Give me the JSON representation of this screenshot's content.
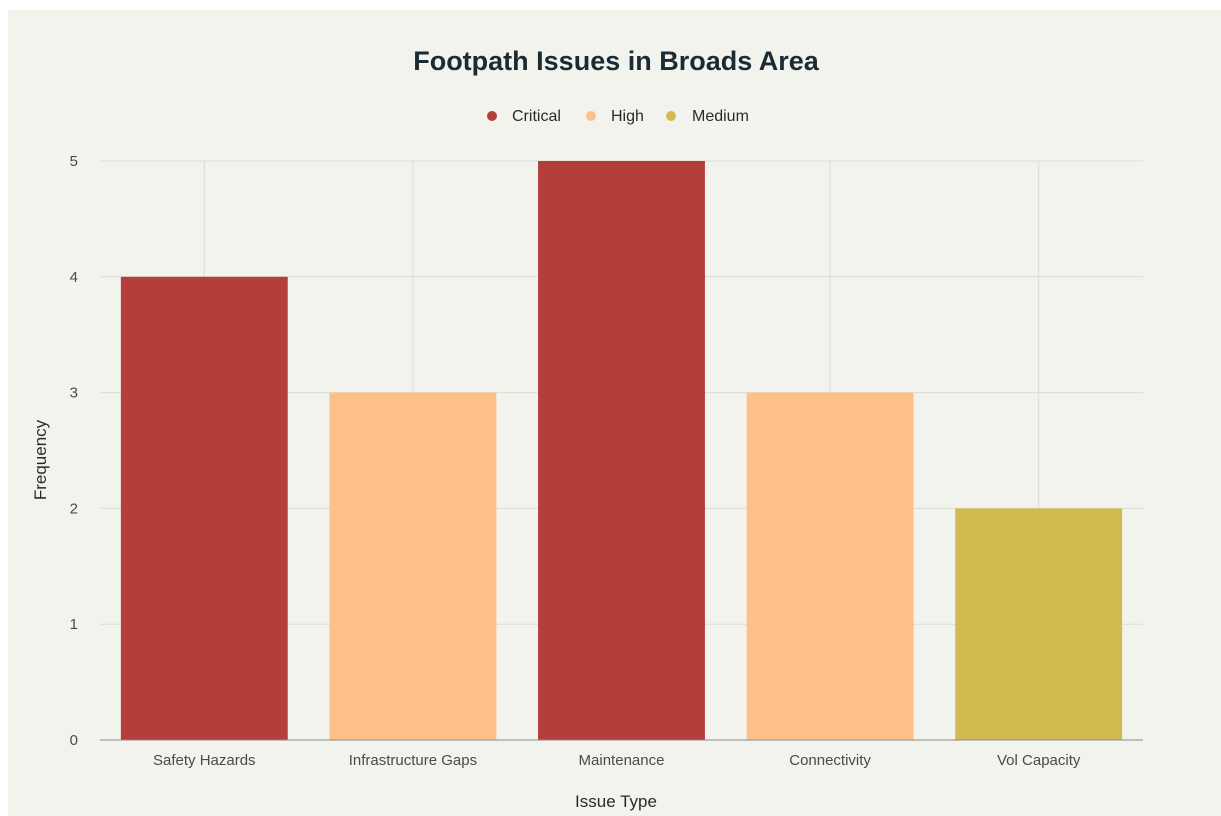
{
  "chart_data": {
    "type": "bar",
    "title": "Footpath Issues in Broads Area",
    "xlabel": "Issue Type",
    "ylabel": "Frequency",
    "categories": [
      "Safety Hazards",
      "Infrastructure Gaps",
      "Maintenance",
      "Connectivity",
      "Vol Capacity"
    ],
    "values": [
      4,
      3,
      5,
      3,
      2
    ],
    "severity": [
      "Critical",
      "High",
      "Critical",
      "High",
      "Medium"
    ],
    "legend": [
      {
        "name": "Critical",
        "color": "#b43e3a"
      },
      {
        "name": "High",
        "color": "#fdc087"
      },
      {
        "name": "Medium",
        "color": "#d2ba4f"
      }
    ],
    "ylim": [
      0,
      5
    ],
    "yticks": [
      0,
      1,
      2,
      3,
      4,
      5
    ],
    "grid": true,
    "legend_position": "top-center"
  }
}
